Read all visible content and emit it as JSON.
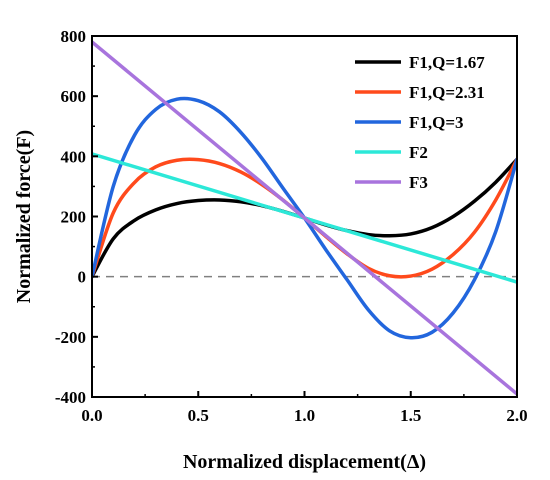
{
  "chart_data": {
    "type": "line",
    "title": "",
    "xlabel": "Normalized displacement(Δ)",
    "ylabel": "Normalized force(F)",
    "xlim": [
      0.0,
      2.0
    ],
    "ylim": [
      -400,
      800
    ],
    "x_ticks": [
      "0.0",
      "0.5",
      "1.0",
      "1.5",
      "2.0"
    ],
    "y_ticks": [
      "-400",
      "-200",
      "0",
      "200",
      "400",
      "600",
      "800"
    ],
    "grid": false,
    "legend_position": "top-right",
    "reference_line": {
      "y": 0,
      "style": "dashed",
      "color": "#808080"
    },
    "series": [
      {
        "name": "F1,Q=1.67",
        "color": "#000000",
        "x": [
          0.0,
          0.1,
          0.2,
          0.3,
          0.4,
          0.5,
          0.6,
          0.7,
          0.8,
          0.9,
          1.0,
          1.1,
          1.2,
          1.3,
          1.4,
          1.5,
          1.6,
          1.7,
          1.8,
          1.9,
          2.0
        ],
        "y": [
          0,
          126,
          187,
          222,
          243,
          253,
          255,
          249,
          236,
          217,
          195,
          172,
          153,
          140,
          136,
          142,
          163,
          200,
          251,
          314,
          390
        ]
      },
      {
        "name": "F1,Q=2.31",
        "color": "#ff4a1c",
        "x": [
          0.0,
          0.1,
          0.2,
          0.3,
          0.4,
          0.5,
          0.6,
          0.7,
          0.8,
          0.9,
          1.0,
          1.1,
          1.2,
          1.3,
          1.4,
          1.5,
          1.6,
          1.7,
          1.8,
          1.9,
          2.0
        ],
        "y": [
          0,
          212,
          313,
          365,
          387,
          389,
          376,
          348,
          306,
          254,
          195,
          134,
          76,
          28,
          3,
          2,
          25,
          74,
          148,
          255,
          390
        ]
      },
      {
        "name": "F1,Q=3",
        "color": "#2266dd",
        "x": [
          0.0,
          0.1,
          0.2,
          0.3,
          0.4,
          0.5,
          0.6,
          0.7,
          0.8,
          0.9,
          1.0,
          1.1,
          1.2,
          1.3,
          1.4,
          1.5,
          1.6,
          1.7,
          1.8,
          1.9,
          2.0
        ],
        "y": [
          0,
          300,
          470,
          556,
          590,
          585,
          548,
          480,
          393,
          293,
          195,
          90,
          -10,
          -110,
          -180,
          -203,
          -185,
          -120,
          -10,
          150,
          390
        ]
      },
      {
        "name": "F2",
        "color": "#2ce8d8",
        "x": [
          0.0,
          2.0
        ],
        "y": [
          408,
          -18
        ]
      },
      {
        "name": "F3",
        "color": "#a874dd",
        "x": [
          0.0,
          2.0
        ],
        "y": [
          780,
          -390
        ]
      }
    ]
  }
}
